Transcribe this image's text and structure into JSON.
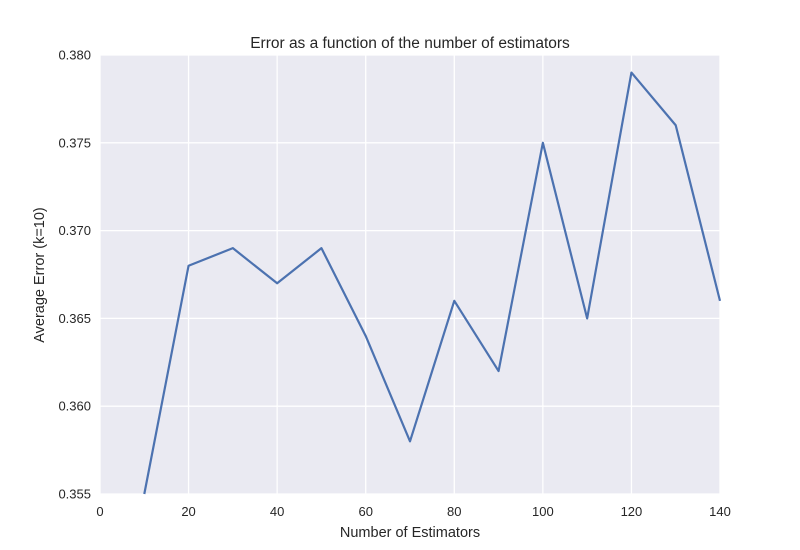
{
  "chart_data": {
    "type": "line",
    "title": "Error as a function of the number of estimators",
    "xlabel": "Number of Estimators",
    "ylabel": "Average Error (k=10)",
    "xlim": [
      0,
      140
    ],
    "ylim": [
      0.355,
      0.38
    ],
    "xticks": [
      0,
      20,
      40,
      60,
      80,
      100,
      120,
      140
    ],
    "xtick_labels": [
      "0",
      "20",
      "40",
      "60",
      "80",
      "100",
      "120",
      "140"
    ],
    "yticks": [
      0.355,
      0.36,
      0.365,
      0.37,
      0.375,
      0.38
    ],
    "ytick_labels": [
      "0.355",
      "0.360",
      "0.365",
      "0.370",
      "0.375",
      "0.380"
    ],
    "grid": true,
    "background": "#eaeaf2",
    "series": [
      {
        "color": "#4c72b0",
        "x": [
          10,
          20,
          30,
          40,
          50,
          60,
          70,
          80,
          90,
          100,
          110,
          120,
          130,
          140
        ],
        "y": [
          0.355,
          0.368,
          0.369,
          0.367,
          0.369,
          0.364,
          0.358,
          0.366,
          0.362,
          0.375,
          0.365,
          0.379,
          0.376,
          0.366
        ]
      }
    ]
  }
}
